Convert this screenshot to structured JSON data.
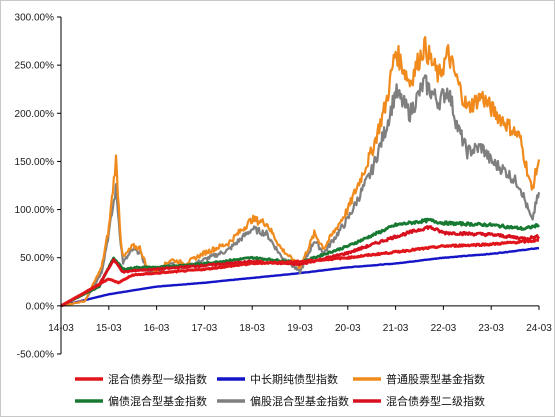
{
  "chart_data": {
    "type": "line",
    "title": "",
    "xlabel": "",
    "ylabel": "",
    "x_ticks": [
      "14-03",
      "15-03",
      "16-03",
      "17-03",
      "18-03",
      "19-03",
      "20-03",
      "21-03",
      "22-03",
      "23-03",
      "24-03"
    ],
    "y_ticks": [
      "300.00%",
      "250.00%",
      "200.00%",
      "150.00%",
      "100.00%",
      "50.00%",
      "0.00%",
      "-50.00%"
    ],
    "ylim": [
      -50,
      300
    ],
    "y_unit": "%",
    "grid": false,
    "legend_position": "bottom",
    "series": [
      {
        "name": "混合债券型一级指数",
        "color": "#e0161b",
        "points": [
          [
            0,
            0
          ],
          [
            1,
            28
          ],
          [
            1.2,
            24
          ],
          [
            1.5,
            32
          ],
          [
            2,
            34
          ],
          [
            3,
            38
          ],
          [
            4,
            44
          ],
          [
            5,
            46
          ],
          [
            6,
            50
          ],
          [
            7,
            56
          ],
          [
            8,
            62
          ],
          [
            9,
            64
          ],
          [
            10,
            68
          ]
        ]
      },
      {
        "name": "中长期纯债型指数",
        "color": "#1515c8",
        "points": [
          [
            0,
            0
          ],
          [
            1,
            12
          ],
          [
            2,
            20
          ],
          [
            3,
            24
          ],
          [
            4,
            29
          ],
          [
            5,
            34
          ],
          [
            6,
            40
          ],
          [
            7,
            44
          ],
          [
            8,
            50
          ],
          [
            9,
            54
          ],
          [
            10,
            60
          ]
        ]
      },
      {
        "name": "普通股票型基金指数",
        "color": "#f08a1c",
        "points": [
          [
            0,
            0
          ],
          [
            0.5,
            5
          ],
          [
            0.85,
            40
          ],
          [
            1,
            80
          ],
          [
            1.15,
            152
          ],
          [
            1.25,
            70
          ],
          [
            1.3,
            50
          ],
          [
            1.5,
            62
          ],
          [
            1.65,
            60
          ],
          [
            1.8,
            40
          ],
          [
            2,
            36
          ],
          [
            2.3,
            48
          ],
          [
            2.6,
            44
          ],
          [
            3,
            55
          ],
          [
            3.5,
            65
          ],
          [
            4,
            90
          ],
          [
            4.3,
            86
          ],
          [
            4.6,
            60
          ],
          [
            5,
            40
          ],
          [
            5.3,
            75
          ],
          [
            5.5,
            60
          ],
          [
            6,
            100
          ],
          [
            6.5,
            160
          ],
          [
            6.8,
            210
          ],
          [
            7,
            265
          ],
          [
            7.3,
            232
          ],
          [
            7.6,
            270
          ],
          [
            7.9,
            238
          ],
          [
            8.1,
            262
          ],
          [
            8.3,
            232
          ],
          [
            8.5,
            205
          ],
          [
            8.8,
            218
          ],
          [
            9,
            205
          ],
          [
            9.3,
            190
          ],
          [
            9.6,
            175
          ],
          [
            9.85,
            120
          ],
          [
            10,
            152
          ]
        ]
      },
      {
        "name": "偏债混合型基金指数",
        "color": "#187a32",
        "points": [
          [
            0,
            0
          ],
          [
            0.8,
            20
          ],
          [
            1.1,
            50
          ],
          [
            1.3,
            38
          ],
          [
            1.6,
            40
          ],
          [
            2,
            40
          ],
          [
            3,
            44
          ],
          [
            4,
            50
          ],
          [
            5,
            45
          ],
          [
            6,
            62
          ],
          [
            7,
            84
          ],
          [
            7.7,
            89
          ],
          [
            8,
            86
          ],
          [
            9,
            84
          ],
          [
            9.7,
            80
          ],
          [
            10,
            84
          ]
        ]
      },
      {
        "name": "偏股混合型基金指数",
        "color": "#7f7f7f",
        "points": [
          [
            0,
            0
          ],
          [
            0.5,
            5
          ],
          [
            0.85,
            35
          ],
          [
            1,
            75
          ],
          [
            1.15,
            122
          ],
          [
            1.25,
            65
          ],
          [
            1.3,
            45
          ],
          [
            1.5,
            58
          ],
          [
            1.65,
            56
          ],
          [
            1.8,
            38
          ],
          [
            2,
            34
          ],
          [
            2.3,
            44
          ],
          [
            2.6,
            40
          ],
          [
            3,
            48
          ],
          [
            3.5,
            58
          ],
          [
            4,
            80
          ],
          [
            4.3,
            75
          ],
          [
            4.6,
            52
          ],
          [
            5,
            35
          ],
          [
            5.3,
            68
          ],
          [
            5.5,
            55
          ],
          [
            6,
            90
          ],
          [
            6.5,
            140
          ],
          [
            6.8,
            185
          ],
          [
            7,
            222
          ],
          [
            7.3,
            200
          ],
          [
            7.6,
            232
          ],
          [
            7.9,
            212
          ],
          [
            8.1,
            225
          ],
          [
            8.3,
            185
          ],
          [
            8.5,
            160
          ],
          [
            8.8,
            165
          ],
          [
            9,
            150
          ],
          [
            9.3,
            140
          ],
          [
            9.6,
            125
          ],
          [
            9.85,
            88
          ],
          [
            10,
            118
          ]
        ]
      },
      {
        "name": "混合债券型二级指数",
        "color": "#d8101e",
        "points": [
          [
            0,
            0
          ],
          [
            0.8,
            22
          ],
          [
            1.1,
            48
          ],
          [
            1.3,
            35
          ],
          [
            1.6,
            37
          ],
          [
            2,
            38
          ],
          [
            3,
            42
          ],
          [
            4,
            46
          ],
          [
            5,
            43
          ],
          [
            6,
            55
          ],
          [
            7,
            72
          ],
          [
            7.7,
            82
          ],
          [
            8,
            76
          ],
          [
            9,
            74
          ],
          [
            9.7,
            70
          ],
          [
            10,
            72
          ]
        ]
      }
    ]
  }
}
